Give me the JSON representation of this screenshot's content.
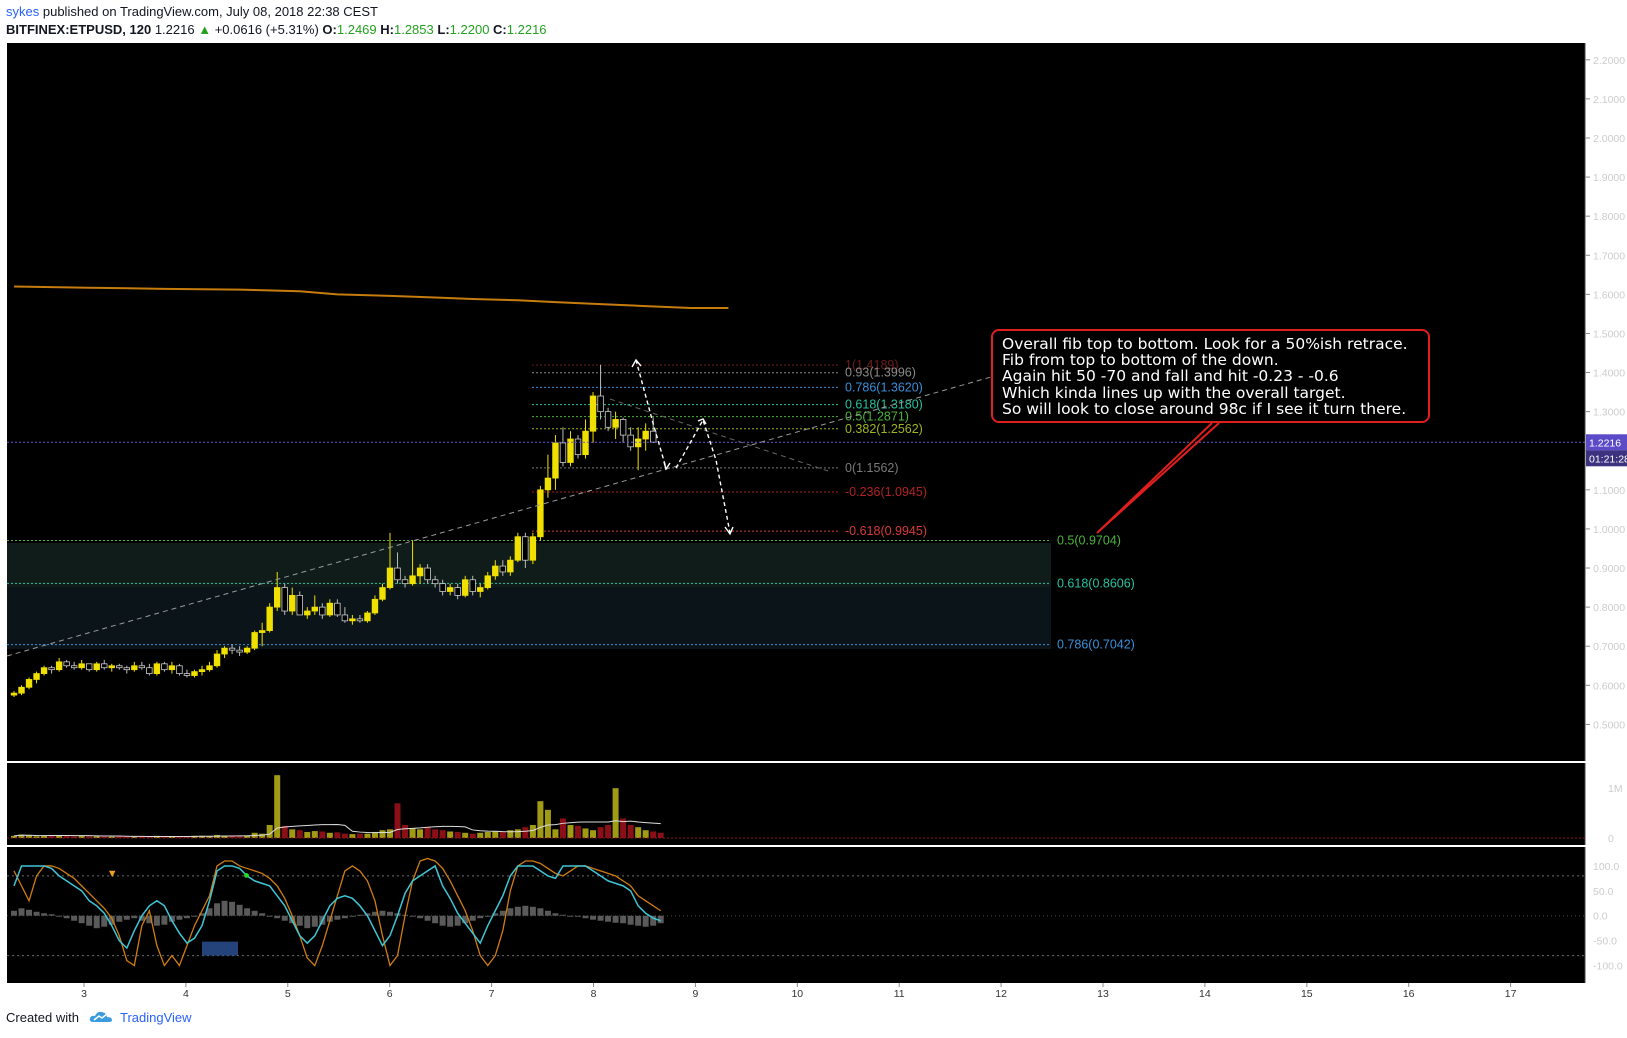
{
  "header": {
    "author": "sykes",
    "published": "published on TradingView.com, July 08, 2018 22:38 CEST",
    "symbol": "BITFINEX:ETPUSD, 120",
    "last": "1.2216",
    "change_arrow": "▲",
    "change": "+0.0616 (+5.31%)",
    "o_label": "O:",
    "o_value": "1.2469",
    "h_label": "H:",
    "h_value": "1.2853",
    "l_label": "L:",
    "l_value": "1.2200",
    "c_label": "C:",
    "c_value": "1.2216"
  },
  "annotation": {
    "lines": [
      "Overall fib top to bottom. Look for a 50%ish retrace.",
      "Fib from top to bottom of the down.",
      "Again hit 50 -70 and fall and hit -0.23 - -0.6",
      "Which kinda lines up with the overall target.",
      "So will look to close around 98c if I see it turn there."
    ]
  },
  "footer": {
    "created": "Created with",
    "brand": "TradingView"
  },
  "colors": {
    "background": "#000000",
    "bull": "#f0e000",
    "bear": "#ffffff",
    "ma_line": "#c77c0e",
    "volume_up": "#a09a14",
    "volume_down": "#8b0f16",
    "stoch_k": "#3fc6d6",
    "stoch_d": "#d07d12",
    "annotation_border": "#e01e1e"
  },
  "chart_data": {
    "type": "candlestick",
    "price_axis": {
      "ticks": [
        "2.2000",
        "2.1000",
        "2.0000",
        "1.9000",
        "1.8000",
        "1.7000",
        "1.6000",
        "1.5000",
        "1.4000",
        "1.3000",
        "1.2000",
        "1.1000",
        "1.0000",
        "0.9000",
        "0.8000",
        "0.7000",
        "0.6000",
        "0.5000"
      ],
      "ylim": [
        0.455,
        2.225
      ],
      "last_price_label": "1.2216",
      "countdown_label": "01:21:28"
    },
    "time_axis": {
      "ticks": [
        "3",
        "4",
        "5",
        "6",
        "7",
        "8",
        "9",
        "10",
        "11",
        "12",
        "13",
        "14",
        "15",
        "16",
        "17"
      ]
    },
    "candles": [
      [
        0.575,
        0.585,
        0.57,
        0.58
      ],
      [
        0.58,
        0.6,
        0.575,
        0.595
      ],
      [
        0.595,
        0.62,
        0.59,
        0.615
      ],
      [
        0.615,
        0.635,
        0.605,
        0.63
      ],
      [
        0.63,
        0.65,
        0.625,
        0.645
      ],
      [
        0.645,
        0.65,
        0.63,
        0.64
      ],
      [
        0.64,
        0.67,
        0.635,
        0.66
      ],
      [
        0.66,
        0.665,
        0.645,
        0.65
      ],
      [
        0.65,
        0.66,
        0.64,
        0.645
      ],
      [
        0.645,
        0.665,
        0.64,
        0.655
      ],
      [
        0.655,
        0.65,
        0.635,
        0.64
      ],
      [
        0.64,
        0.66,
        0.635,
        0.655
      ],
      [
        0.655,
        0.665,
        0.64,
        0.645
      ],
      [
        0.645,
        0.655,
        0.635,
        0.65
      ],
      [
        0.65,
        0.655,
        0.64,
        0.645
      ],
      [
        0.645,
        0.65,
        0.63,
        0.64
      ],
      [
        0.64,
        0.66,
        0.635,
        0.65
      ],
      [
        0.65,
        0.66,
        0.64,
        0.645
      ],
      [
        0.645,
        0.655,
        0.625,
        0.63
      ],
      [
        0.63,
        0.66,
        0.625,
        0.655
      ],
      [
        0.655,
        0.66,
        0.635,
        0.64
      ],
      [
        0.64,
        0.66,
        0.63,
        0.65
      ],
      [
        0.65,
        0.655,
        0.625,
        0.63
      ],
      [
        0.63,
        0.64,
        0.62,
        0.625
      ],
      [
        0.625,
        0.64,
        0.62,
        0.635
      ],
      [
        0.635,
        0.65,
        0.625,
        0.64
      ],
      [
        0.64,
        0.66,
        0.635,
        0.65
      ],
      [
        0.65,
        0.69,
        0.645,
        0.68
      ],
      [
        0.68,
        0.7,
        0.67,
        0.695
      ],
      [
        0.695,
        0.705,
        0.68,
        0.69
      ],
      [
        0.69,
        0.7,
        0.675,
        0.685
      ],
      [
        0.685,
        0.7,
        0.68,
        0.695
      ],
      [
        0.695,
        0.74,
        0.69,
        0.735
      ],
      [
        0.735,
        0.76,
        0.7,
        0.74
      ],
      [
        0.74,
        0.81,
        0.735,
        0.8
      ],
      [
        0.8,
        0.89,
        0.79,
        0.85
      ],
      [
        0.85,
        0.86,
        0.78,
        0.79
      ],
      [
        0.79,
        0.85,
        0.78,
        0.83
      ],
      [
        0.83,
        0.84,
        0.78,
        0.78
      ],
      [
        0.78,
        0.8,
        0.77,
        0.79
      ],
      [
        0.79,
        0.83,
        0.78,
        0.8
      ],
      [
        0.8,
        0.81,
        0.77,
        0.78
      ],
      [
        0.78,
        0.82,
        0.775,
        0.81
      ],
      [
        0.81,
        0.82,
        0.775,
        0.78
      ],
      [
        0.78,
        0.8,
        0.76,
        0.765
      ],
      [
        0.765,
        0.78,
        0.755,
        0.77
      ],
      [
        0.77,
        0.78,
        0.76,
        0.765
      ],
      [
        0.765,
        0.79,
        0.76,
        0.785
      ],
      [
        0.785,
        0.83,
        0.78,
        0.82
      ],
      [
        0.82,
        0.86,
        0.815,
        0.85
      ],
      [
        0.85,
        0.99,
        0.845,
        0.9
      ],
      [
        0.9,
        0.94,
        0.86,
        0.87
      ],
      [
        0.87,
        0.88,
        0.85,
        0.86
      ],
      [
        0.86,
        0.97,
        0.855,
        0.88
      ],
      [
        0.88,
        0.91,
        0.86,
        0.9
      ],
      [
        0.9,
        0.91,
        0.86,
        0.87
      ],
      [
        0.87,
        0.88,
        0.85,
        0.86
      ],
      [
        0.86,
        0.87,
        0.83,
        0.84
      ],
      [
        0.84,
        0.86,
        0.83,
        0.85
      ],
      [
        0.85,
        0.86,
        0.82,
        0.83
      ],
      [
        0.83,
        0.88,
        0.825,
        0.87
      ],
      [
        0.87,
        0.88,
        0.83,
        0.84
      ],
      [
        0.84,
        0.86,
        0.825,
        0.85
      ],
      [
        0.85,
        0.89,
        0.845,
        0.88
      ],
      [
        0.88,
        0.92,
        0.87,
        0.905
      ],
      [
        0.905,
        0.92,
        0.88,
        0.89
      ],
      [
        0.89,
        0.93,
        0.88,
        0.92
      ],
      [
        0.92,
        0.99,
        0.915,
        0.98
      ],
      [
        0.98,
        0.99,
        0.9,
        0.92
      ],
      [
        0.92,
        0.99,
        0.91,
        0.98
      ],
      [
        0.98,
        1.11,
        0.97,
        1.1
      ],
      [
        1.1,
        1.19,
        1.08,
        1.13
      ],
      [
        1.13,
        1.24,
        1.1,
        1.22
      ],
      [
        1.22,
        1.26,
        1.16,
        1.17
      ],
      [
        1.17,
        1.25,
        1.16,
        1.23
      ],
      [
        1.23,
        1.24,
        1.18,
        1.19
      ],
      [
        1.19,
        1.28,
        1.18,
        1.25
      ],
      [
        1.25,
        1.35,
        1.22,
        1.34
      ],
      [
        1.34,
        1.42,
        1.28,
        1.3
      ],
      [
        1.3,
        1.31,
        1.25,
        1.26
      ],
      [
        1.26,
        1.3,
        1.23,
        1.28
      ],
      [
        1.28,
        1.285,
        1.22,
        1.24
      ],
      [
        1.24,
        1.26,
        1.2,
        1.21
      ],
      [
        1.21,
        1.26,
        1.15,
        1.23
      ],
      [
        1.23,
        1.27,
        1.2,
        1.25
      ],
      [
        1.25,
        1.285,
        1.22,
        1.222
      ]
    ],
    "moving_average": [
      [
        0,
        1.62
      ],
      [
        10,
        1.617
      ],
      [
        20,
        1.614
      ],
      [
        30,
        1.612
      ],
      [
        38,
        1.608
      ],
      [
        43,
        1.6
      ],
      [
        50,
        1.596
      ],
      [
        56,
        1.592
      ],
      [
        61,
        1.588
      ],
      [
        67,
        1.585
      ],
      [
        72,
        1.58
      ],
      [
        78,
        1.575
      ],
      [
        84,
        1.57
      ],
      [
        90,
        1.565
      ],
      [
        95,
        1.565
      ]
    ],
    "fib_retracement_local": [
      {
        "level": "1",
        "value": 1.4189,
        "label": "1(1.4189)",
        "color": "#6e1d1d"
      },
      {
        "level": "0.93",
        "value": 1.3996,
        "label": "0.93(1.3996)",
        "color": "#8a8a8a"
      },
      {
        "level": "0.786",
        "value": 1.362,
        "label": "0.786(1.3620)",
        "color": "#3a8fd8"
      },
      {
        "level": "0.618",
        "value": 1.318,
        "label": "0.618(1.3180)",
        "color": "#26c2a0"
      },
      {
        "level": "0.5",
        "value": 1.2871,
        "label": "0.5(1.2871)",
        "color": "#4db33d"
      },
      {
        "level": "0.382",
        "value": 1.2562,
        "label": "0.382(1.2562)",
        "color": "#a0b321"
      },
      {
        "level": "0",
        "value": 1.1562,
        "label": "0(1.1562)",
        "color": "#7a7a7a"
      },
      {
        "level": "-0.236",
        "value": 1.0945,
        "label": "-0.236(1.0945)",
        "color": "#b02222"
      },
      {
        "level": "-0.618",
        "value": 0.9945,
        "label": "-0.618(0.9945)",
        "color": "#d83a3a"
      }
    ],
    "fib_retracement_overall": [
      {
        "level": "0.5",
        "value": 0.9704,
        "label": "0.5(0.9704)",
        "color": "#4db33d"
      },
      {
        "level": "0.618",
        "value": 0.8606,
        "label": "0.618(0.8606)",
        "color": "#26c2a0"
      },
      {
        "level": "0.786",
        "value": 0.7042,
        "label": "0.786(0.7042)",
        "color": "#3a8fd8"
      }
    ],
    "volume": {
      "axis_ticks": [
        "1M",
        "0"
      ],
      "values": [
        0.05,
        0.08,
        0.06,
        0.04,
        0.05,
        0.07,
        0.06,
        0.05,
        0.04,
        0.05,
        0.04,
        0.04,
        0.03,
        0.03,
        0.04,
        0.03,
        0.03,
        0.04,
        0.03,
        0.05,
        0.03,
        0.04,
        0.03,
        0.04,
        0.05,
        0.05,
        0.04,
        0.07,
        0.05,
        0.06,
        0.05,
        0.06,
        0.12,
        0.1,
        0.3,
        1.45,
        0.28,
        0.2,
        0.18,
        0.14,
        0.16,
        0.15,
        0.12,
        0.13,
        0.1,
        0.09,
        0.1,
        0.1,
        0.14,
        0.18,
        0.2,
        0.8,
        0.3,
        0.22,
        0.2,
        0.25,
        0.2,
        0.18,
        0.15,
        0.14,
        0.12,
        0.1,
        0.12,
        0.14,
        0.16,
        0.15,
        0.18,
        0.2,
        0.25,
        0.3,
        0.85,
        0.65,
        0.2,
        0.45,
        0.3,
        0.28,
        0.22,
        0.18,
        0.25,
        0.3,
        1.15,
        0.45,
        0.3,
        0.25,
        0.18,
        0.15,
        0.12
      ]
    },
    "oscillator": {
      "axis_ticks": [
        "100.0",
        "50.0",
        "0.0",
        "-50.0",
        "-100.0"
      ],
      "ylim": [
        -125,
        128
      ],
      "stoch_k": [
        60,
        100,
        100,
        100,
        100,
        95,
        80,
        70,
        60,
        50,
        30,
        20,
        5,
        -20,
        -50,
        -65,
        -30,
        0,
        20,
        30,
        20,
        -10,
        -35,
        -55,
        -45,
        -20,
        30,
        90,
        100,
        100,
        95,
        80,
        70,
        65,
        60,
        40,
        20,
        -10,
        -40,
        -55,
        -40,
        -10,
        20,
        35,
        40,
        35,
        20,
        0,
        -30,
        -60,
        -40,
        0,
        45,
        70,
        80,
        90,
        100,
        60,
        35,
        5,
        -15,
        -35,
        -55,
        -20,
        10,
        40,
        80,
        100,
        100,
        100,
        90,
        80,
        75,
        100,
        100,
        100,
        100,
        90,
        80,
        70,
        65,
        60,
        50,
        20,
        5,
        -5,
        -10
      ],
      "stoch_d": [
        90,
        60,
        30,
        80,
        100,
        100,
        95,
        85,
        75,
        60,
        45,
        30,
        15,
        -5,
        -40,
        -90,
        -100,
        -20,
        10,
        -60,
        -100,
        -80,
        -100,
        -60,
        -20,
        10,
        40,
        100,
        110,
        110,
        100,
        95,
        90,
        85,
        75,
        60,
        35,
        0,
        -40,
        -85,
        -100,
        -60,
        -10,
        40,
        90,
        100,
        90,
        70,
        30,
        -40,
        -100,
        -80,
        0,
        70,
        110,
        115,
        110,
        95,
        70,
        40,
        10,
        -30,
        -80,
        -100,
        -80,
        -30,
        50,
        100,
        110,
        110,
        105,
        95,
        85,
        80,
        90,
        100,
        100,
        95,
        90,
        85,
        80,
        70,
        60,
        40,
        30,
        20,
        10
      ],
      "histogram": [
        10,
        15,
        12,
        8,
        5,
        3,
        0,
        -5,
        -10,
        -15,
        -20,
        -25,
        -22,
        -18,
        -12,
        -8,
        -5,
        -10,
        -15,
        -20,
        -18,
        -12,
        -8,
        -5,
        -2,
        5,
        15,
        25,
        30,
        28,
        22,
        15,
        10,
        5,
        0,
        -5,
        -10,
        -15,
        -20,
        -25,
        -22,
        -18,
        -12,
        -8,
        -5,
        -2,
        2,
        5,
        8,
        10,
        8,
        5,
        2,
        0,
        -5,
        -10,
        -15,
        -20,
        -22,
        -20,
        -15,
        -10,
        -5,
        0,
        5,
        10,
        15,
        18,
        20,
        18,
        15,
        10,
        5,
        2,
        0,
        -2,
        -5,
        -8,
        -10,
        -12,
        -14,
        -15,
        -18,
        -20,
        -22,
        -20,
        -15
      ],
      "signal_line_markers": [
        "▼",
        "●"
      ]
    },
    "annotations": [
      {
        "type": "trend_line",
        "description": "dashed uptrend line from lower left to upper right"
      },
      {
        "type": "projection_arrows",
        "description": "dashed white arrows projecting retrace up then down"
      }
    ]
  }
}
